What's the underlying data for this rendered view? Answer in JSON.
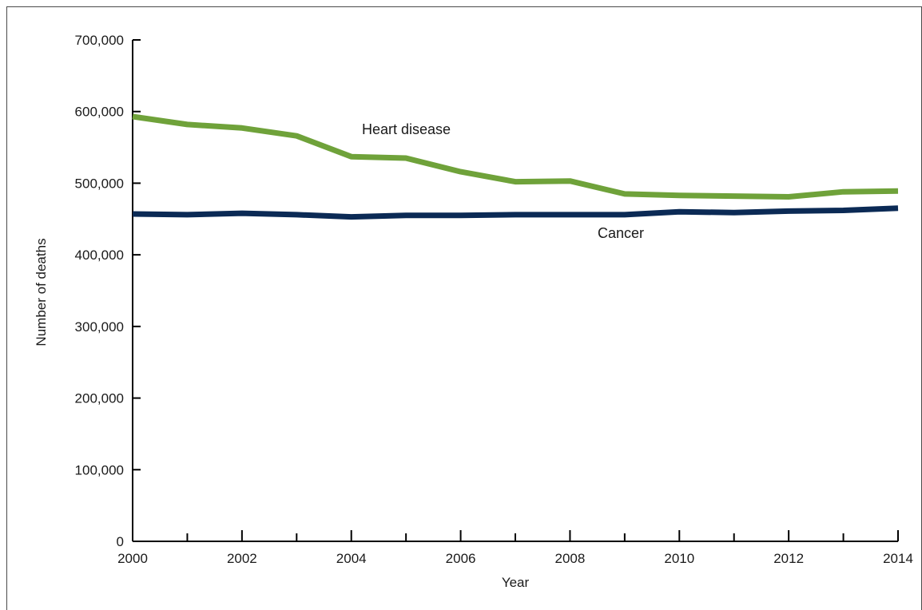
{
  "chart_data": {
    "type": "line",
    "xlabel": "Year",
    "ylabel": "Number of deaths",
    "xlim": [
      2000,
      2014
    ],
    "ylim": [
      0,
      700000
    ],
    "grid": false,
    "x": [
      2000,
      2001,
      2002,
      2003,
      2004,
      2005,
      2006,
      2007,
      2008,
      2009,
      2010,
      2011,
      2012,
      2013,
      2014
    ],
    "x_ticks": [
      2000,
      2002,
      2004,
      2006,
      2008,
      2010,
      2012,
      2014
    ],
    "x_tick_labels": [
      "2000",
      "2002",
      "2004",
      "2006",
      "2008",
      "2010",
      "2012",
      "2014"
    ],
    "y_ticks": [
      0,
      100000,
      200000,
      300000,
      400000,
      500000,
      600000,
      700000
    ],
    "y_tick_labels": [
      "0",
      "100,000",
      "200,000",
      "300,000",
      "400,000",
      "500,000",
      "600,000",
      "700,000"
    ],
    "series": [
      {
        "name": "Heart disease",
        "color": "#6fa23a",
        "values": [
          593000,
          582000,
          577000,
          566000,
          537000,
          535000,
          516000,
          502000,
          503000,
          485000,
          483000,
          482000,
          481000,
          488000,
          489000
        ]
      },
      {
        "name": "Cancer",
        "color": "#0b2a55",
        "values": [
          457000,
          456000,
          458000,
          456000,
          453000,
          455000,
          455000,
          456000,
          456000,
          456000,
          460000,
          459000,
          461000,
          462000,
          465000
        ]
      }
    ]
  }
}
